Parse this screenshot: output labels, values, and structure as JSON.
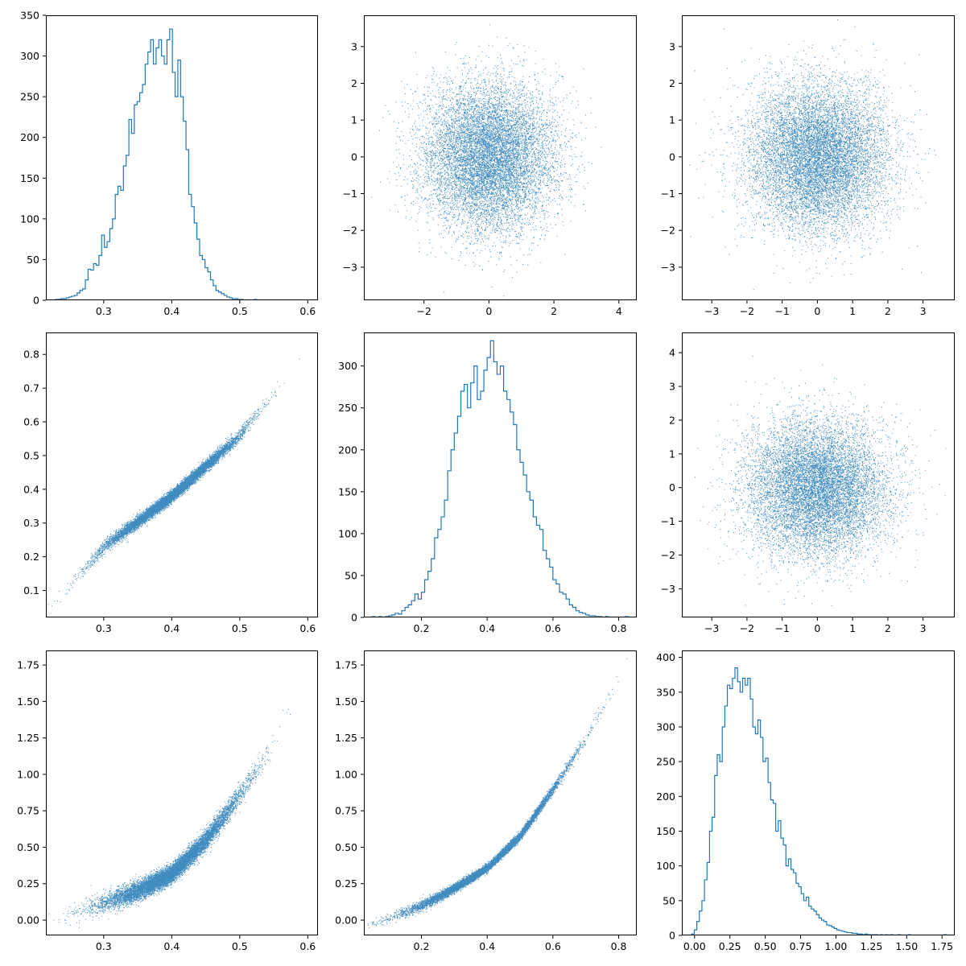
{
  "colors": {
    "series": "#1f77b4",
    "axes": "#000000",
    "background": "#ffffff"
  },
  "chart_data": [
    {
      "id": "p00",
      "type": "histogram",
      "grid": false,
      "xlim": [
        0.215,
        0.615
      ],
      "ylim": [
        0,
        350
      ],
      "xticks": [
        {
          "v": 0.3,
          "label": "0.3"
        },
        {
          "v": 0.4,
          "label": "0.4"
        },
        {
          "v": 0.5,
          "label": "0.5"
        },
        {
          "v": 0.6,
          "label": "0.6"
        }
      ],
      "yticks": [
        {
          "v": 0,
          "label": "0"
        },
        {
          "v": 50,
          "label": "50"
        },
        {
          "v": 100,
          "label": "100"
        },
        {
          "v": 150,
          "label": "150"
        },
        {
          "v": 200,
          "label": "200"
        },
        {
          "v": 250,
          "label": "250"
        },
        {
          "v": 300,
          "label": "300"
        },
        {
          "v": 350,
          "label": "350"
        }
      ],
      "bins": {
        "start": 0.225,
        "width": 0.004,
        "counts": [
          0,
          1,
          1,
          2,
          2,
          3,
          4,
          5,
          6,
          9,
          12,
          14,
          25,
          38,
          37,
          45,
          43,
          55,
          80,
          65,
          72,
          88,
          100,
          130,
          140,
          135,
          165,
          178,
          222,
          205,
          240,
          244,
          255,
          265,
          290,
          305,
          320,
          290,
          310,
          320,
          300,
          290,
          320,
          333,
          280,
          250,
          295,
          250,
          220,
          185,
          130,
          115,
          95,
          75,
          55,
          50,
          40,
          35,
          25,
          18,
          12,
          10,
          8,
          6,
          4,
          3,
          2,
          2,
          1,
          1,
          0,
          0,
          0,
          0,
          1,
          0
        ]
      }
    },
    {
      "id": "p01",
      "type": "scatter",
      "grid": false,
      "xlim": [
        -3.85,
        4.55
      ],
      "ylim": [
        -3.9,
        3.85
      ],
      "xticks": [
        {
          "v": -2,
          "label": "−2"
        },
        {
          "v": 0,
          "label": "0"
        },
        {
          "v": 2,
          "label": "2"
        },
        {
          "v": 4,
          "label": "4"
        }
      ],
      "yticks": [
        {
          "v": -3,
          "label": "−3"
        },
        {
          "v": -2,
          "label": "−2"
        },
        {
          "v": -1,
          "label": "−1"
        },
        {
          "v": 0,
          "label": "0"
        },
        {
          "v": 1,
          "label": "1"
        },
        {
          "v": 2,
          "label": "2"
        },
        {
          "v": 3,
          "label": "3"
        }
      ],
      "distribution": {
        "kind": "bivariate-normal",
        "n": 10000,
        "x_mean": 0,
        "x_sd": 1,
        "y_mean": 0,
        "y_sd": 1,
        "corr": 0
      }
    },
    {
      "id": "p02",
      "type": "scatter",
      "grid": false,
      "xlim": [
        -3.85,
        3.9
      ],
      "ylim": [
        -3.9,
        3.85
      ],
      "xticks": [
        {
          "v": -3,
          "label": "−3"
        },
        {
          "v": -2,
          "label": "−2"
        },
        {
          "v": -1,
          "label": "−1"
        },
        {
          "v": 0,
          "label": "0"
        },
        {
          "v": 1,
          "label": "1"
        },
        {
          "v": 2,
          "label": "2"
        },
        {
          "v": 3,
          "label": "3"
        }
      ],
      "yticks": [
        {
          "v": -3,
          "label": "−3"
        },
        {
          "v": -2,
          "label": "−2"
        },
        {
          "v": -1,
          "label": "−1"
        },
        {
          "v": 0,
          "label": "0"
        },
        {
          "v": 1,
          "label": "1"
        },
        {
          "v": 2,
          "label": "2"
        },
        {
          "v": 3,
          "label": "3"
        }
      ],
      "distribution": {
        "kind": "bivariate-normal",
        "n": 10000,
        "x_mean": 0,
        "x_sd": 1,
        "y_mean": 0,
        "y_sd": 1,
        "corr": 0
      }
    },
    {
      "id": "p10",
      "type": "scatter",
      "grid": false,
      "xlim": [
        0.215,
        0.615
      ],
      "ylim": [
        0.02,
        0.865
      ],
      "xticks": [
        {
          "v": 0.3,
          "label": "0.3"
        },
        {
          "v": 0.4,
          "label": "0.4"
        },
        {
          "v": 0.5,
          "label": "0.5"
        },
        {
          "v": 0.6,
          "label": "0.6"
        }
      ],
      "yticks": [
        {
          "v": 0.1,
          "label": "0.1"
        },
        {
          "v": 0.2,
          "label": "0.2"
        },
        {
          "v": 0.3,
          "label": "0.3"
        },
        {
          "v": 0.4,
          "label": "0.4"
        },
        {
          "v": 0.5,
          "label": "0.5"
        },
        {
          "v": 0.6,
          "label": "0.6"
        },
        {
          "v": 0.7,
          "label": "0.7"
        },
        {
          "v": 0.8,
          "label": "0.8"
        }
      ],
      "distribution": {
        "kind": "curve-band",
        "n": 10000,
        "x_mean": 0.4,
        "x_sd": 0.05,
        "curve": [
          [
            0.225,
            0.06
          ],
          [
            0.3,
            0.23
          ],
          [
            0.4,
            0.38
          ],
          [
            0.5,
            0.56
          ],
          [
            0.605,
            0.83
          ]
        ],
        "band_sd": 0.008
      }
    },
    {
      "id": "p11",
      "type": "histogram",
      "grid": false,
      "xlim": [
        0.025,
        0.855
      ],
      "ylim": [
        0,
        340
      ],
      "xticks": [
        {
          "v": 0.2,
          "label": "0.2"
        },
        {
          "v": 0.4,
          "label": "0.4"
        },
        {
          "v": 0.6,
          "label": "0.6"
        },
        {
          "v": 0.8,
          "label": "0.8"
        }
      ],
      "yticks": [
        {
          "v": 0,
          "label": "0"
        },
        {
          "v": 50,
          "label": "50"
        },
        {
          "v": 100,
          "label": "100"
        },
        {
          "v": 150,
          "label": "150"
        },
        {
          "v": 200,
          "label": "200"
        },
        {
          "v": 250,
          "label": "250"
        },
        {
          "v": 300,
          "label": "300"
        }
      ],
      "bins": {
        "start": 0.05,
        "width": 0.01,
        "counts": [
          1,
          0,
          1,
          0,
          1,
          2,
          3,
          5,
          4,
          8,
          12,
          15,
          20,
          28,
          22,
          30,
          45,
          55,
          70,
          95,
          105,
          120,
          140,
          175,
          200,
          220,
          240,
          270,
          278,
          250,
          280,
          300,
          260,
          270,
          295,
          310,
          330,
          305,
          290,
          300,
          270,
          260,
          245,
          230,
          200,
          185,
          170,
          150,
          140,
          120,
          110,
          105,
          80,
          70,
          60,
          45,
          40,
          30,
          28,
          22,
          15,
          12,
          8,
          6,
          5,
          3,
          2,
          2,
          1,
          1,
          0,
          1,
          0,
          0,
          0,
          0,
          0,
          1
        ]
      }
    },
    {
      "id": "p12",
      "type": "scatter",
      "grid": false,
      "xlim": [
        -3.85,
        3.9
      ],
      "ylim": [
        -3.85,
        4.6
      ],
      "xticks": [
        {
          "v": -3,
          "label": "−3"
        },
        {
          "v": -2,
          "label": "−2"
        },
        {
          "v": -1,
          "label": "−1"
        },
        {
          "v": 0,
          "label": "0"
        },
        {
          "v": 1,
          "label": "1"
        },
        {
          "v": 2,
          "label": "2"
        },
        {
          "v": 3,
          "label": "3"
        }
      ],
      "yticks": [
        {
          "v": -3,
          "label": "−3"
        },
        {
          "v": -2,
          "label": "−2"
        },
        {
          "v": -1,
          "label": "−1"
        },
        {
          "v": 0,
          "label": "0"
        },
        {
          "v": 1,
          "label": "1"
        },
        {
          "v": 2,
          "label": "2"
        },
        {
          "v": 3,
          "label": "3"
        },
        {
          "v": 4,
          "label": "4"
        }
      ],
      "distribution": {
        "kind": "bivariate-normal",
        "n": 10000,
        "x_mean": 0,
        "x_sd": 1,
        "y_mean": 0,
        "y_sd": 1,
        "corr": 0
      }
    },
    {
      "id": "p20",
      "type": "scatter",
      "grid": false,
      "xlim": [
        0.215,
        0.615
      ],
      "ylim": [
        -0.105,
        1.85
      ],
      "xticks": [
        {
          "v": 0.3,
          "label": "0.3"
        },
        {
          "v": 0.4,
          "label": "0.4"
        },
        {
          "v": 0.5,
          "label": "0.5"
        },
        {
          "v": 0.6,
          "label": "0.6"
        }
      ],
      "yticks": [
        {
          "v": 0,
          "label": "0.00"
        },
        {
          "v": 0.25,
          "label": "0.25"
        },
        {
          "v": 0.5,
          "label": "0.50"
        },
        {
          "v": 0.75,
          "label": "0.75"
        },
        {
          "v": 1.0,
          "label": "1.00"
        },
        {
          "v": 1.25,
          "label": "1.25"
        },
        {
          "v": 1.5,
          "label": "1.50"
        },
        {
          "v": 1.75,
          "label": "1.75"
        }
      ],
      "distribution": {
        "kind": "curve-band",
        "n": 10000,
        "x_mean": 0.4,
        "x_sd": 0.05,
        "curve": [
          [
            0.225,
            0.0
          ],
          [
            0.3,
            0.12
          ],
          [
            0.35,
            0.2
          ],
          [
            0.4,
            0.32
          ],
          [
            0.45,
            0.55
          ],
          [
            0.5,
            0.86
          ],
          [
            0.55,
            1.22
          ],
          [
            0.605,
            1.76
          ]
        ],
        "band_sd": 0.03
      }
    },
    {
      "id": "p21",
      "type": "scatter",
      "grid": false,
      "xlim": [
        0.025,
        0.855
      ],
      "ylim": [
        -0.105,
        1.85
      ],
      "xticks": [
        {
          "v": 0.2,
          "label": "0.2"
        },
        {
          "v": 0.4,
          "label": "0.4"
        },
        {
          "v": 0.6,
          "label": "0.6"
        },
        {
          "v": 0.8,
          "label": "0.8"
        }
      ],
      "yticks": [
        {
          "v": 0,
          "label": "0.00"
        },
        {
          "v": 0.25,
          "label": "0.25"
        },
        {
          "v": 0.5,
          "label": "0.50"
        },
        {
          "v": 0.75,
          "label": "0.75"
        },
        {
          "v": 1.0,
          "label": "1.00"
        },
        {
          "v": 1.25,
          "label": "1.25"
        },
        {
          "v": 1.5,
          "label": "1.50"
        },
        {
          "v": 1.75,
          "label": "1.75"
        }
      ],
      "distribution": {
        "kind": "curve-band",
        "n": 10000,
        "x_mean": 0.4,
        "x_sd": 0.12,
        "curve": [
          [
            0.06,
            -0.02
          ],
          [
            0.2,
            0.1
          ],
          [
            0.3,
            0.22
          ],
          [
            0.4,
            0.36
          ],
          [
            0.5,
            0.58
          ],
          [
            0.6,
            0.9
          ],
          [
            0.7,
            1.25
          ],
          [
            0.82,
            1.76
          ]
        ],
        "band_sd": 0.012
      }
    },
    {
      "id": "p22",
      "type": "histogram",
      "grid": false,
      "xlim": [
        -0.09,
        1.84
      ],
      "ylim": [
        0,
        410
      ],
      "xticks": [
        {
          "v": 0,
          "label": "0.00"
        },
        {
          "v": 0.25,
          "label": "0.25"
        },
        {
          "v": 0.5,
          "label": "0.50"
        },
        {
          "v": 0.75,
          "label": "0.75"
        },
        {
          "v": 1.0,
          "label": "1.00"
        },
        {
          "v": 1.25,
          "label": "1.25"
        },
        {
          "v": 1.5,
          "label": "1.50"
        },
        {
          "v": 1.75,
          "label": "1.75"
        }
      ],
      "yticks": [
        {
          "v": 0,
          "label": "0"
        },
        {
          "v": 50,
          "label": "50"
        },
        {
          "v": 100,
          "label": "100"
        },
        {
          "v": 150,
          "label": "150"
        },
        {
          "v": 200,
          "label": "200"
        },
        {
          "v": 250,
          "label": "250"
        },
        {
          "v": 300,
          "label": "300"
        },
        {
          "v": 350,
          "label": "350"
        },
        {
          "v": 400,
          "label": "400"
        }
      ],
      "bins": {
        "start": -0.02,
        "width": 0.018,
        "counts": [
          2,
          8,
          20,
          35,
          50,
          80,
          105,
          150,
          170,
          230,
          260,
          250,
          300,
          330,
          360,
          355,
          370,
          385,
          365,
          350,
          370,
          360,
          370,
          340,
          300,
          290,
          310,
          285,
          250,
          255,
          220,
          195,
          190,
          150,
          165,
          140,
          130,
          100,
          110,
          95,
          90,
          75,
          70,
          60,
          50,
          55,
          42,
          38,
          35,
          30,
          25,
          22,
          20,
          15,
          14,
          12,
          10,
          8,
          7,
          6,
          5,
          4,
          4,
          3,
          3,
          2,
          2,
          1,
          2,
          1,
          1,
          1,
          1,
          0,
          1,
          0,
          1,
          0,
          1,
          0,
          0,
          1,
          0,
          0,
          0,
          1,
          0,
          0,
          0,
          0,
          0,
          0,
          0,
          0,
          0,
          0,
          0,
          0,
          0,
          1
        ]
      }
    }
  ]
}
